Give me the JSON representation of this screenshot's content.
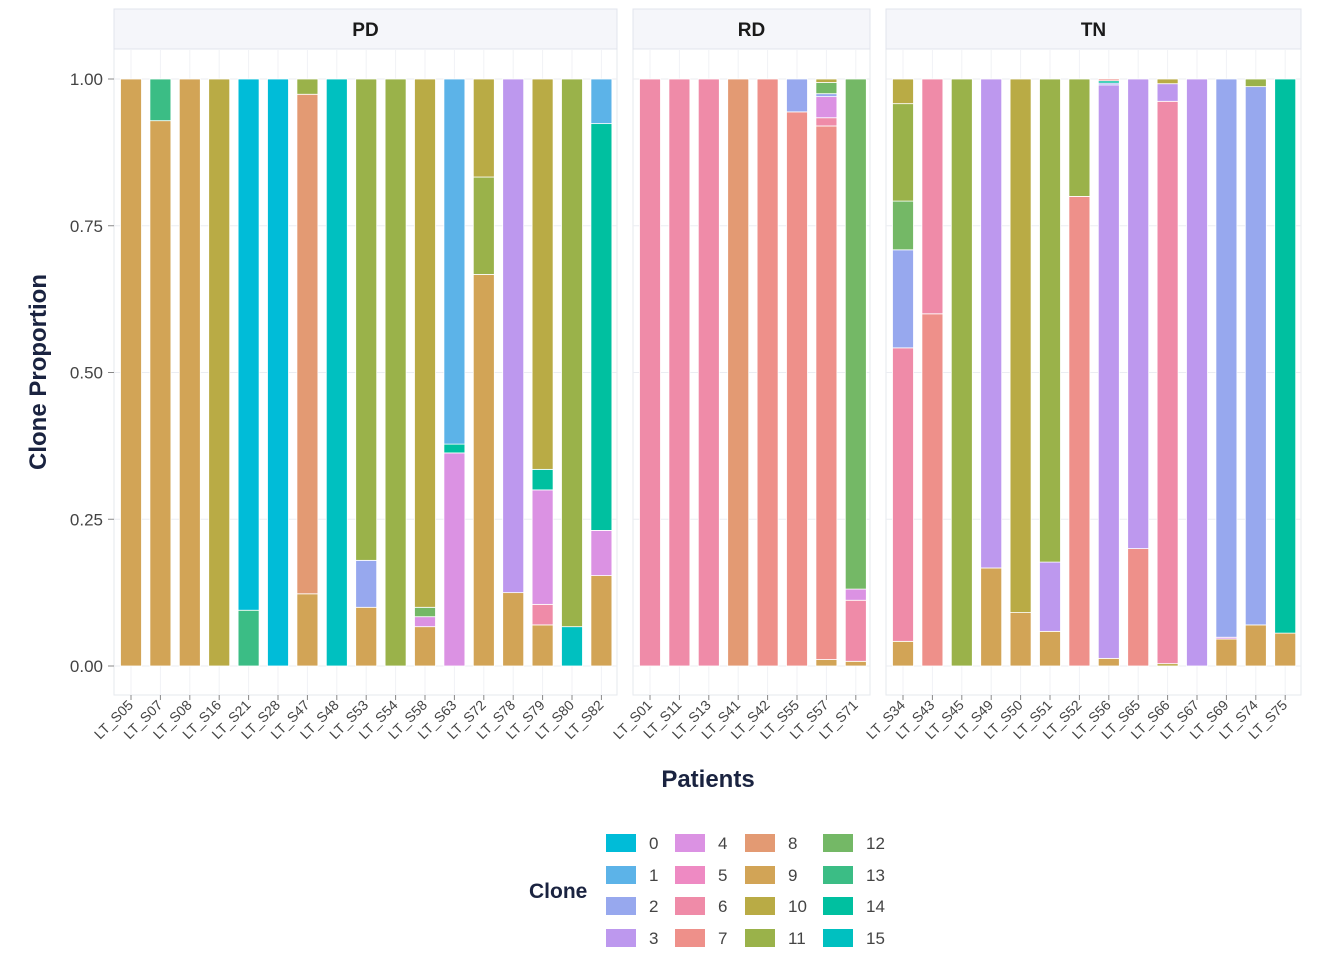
{
  "chart_data": {
    "type": "bar",
    "stacked": true,
    "xlabel": "Patients",
    "ylabel": "Clone Proportion",
    "ylim": [
      0,
      1
    ],
    "yticks": [
      "0.00",
      "0.25",
      "0.50",
      "0.75",
      "1.00"
    ],
    "legend": {
      "title": "Clone",
      "position": "bottom",
      "entries": [
        "0",
        "1",
        "2",
        "3",
        "4",
        "5",
        "6",
        "7",
        "8",
        "9",
        "10",
        "11",
        "12",
        "13",
        "14",
        "15"
      ]
    },
    "colors": {
      "0": "#00BCD8",
      "1": "#5CB3E8",
      "2": "#97A8EE",
      "3": "#BD98EE",
      "4": "#DB92E3",
      "5": "#EE8AC3",
      "6": "#EF8BA8",
      "7": "#EE908A",
      "8": "#E39A73",
      "9": "#D2A456",
      "10": "#B9AB45",
      "11": "#9AB24A",
      "12": "#74B866",
      "13": "#3BBD85",
      "14": "#00C0A0",
      "15": "#00C0C0"
    },
    "panels": [
      {
        "label": "PD",
        "patients": [
          {
            "name": "LT_S05",
            "segments": [
              [
                "9",
                1.0
              ]
            ]
          },
          {
            "name": "LT_S07",
            "segments": [
              [
                "9",
                0.929
              ],
              [
                "13",
                0.071
              ]
            ]
          },
          {
            "name": "LT_S08",
            "segments": [
              [
                "9",
                1.0
              ]
            ]
          },
          {
            "name": "LT_S16",
            "segments": [
              [
                "10",
                1.0
              ]
            ]
          },
          {
            "name": "LT_S21",
            "segments": [
              [
                "13",
                0.095
              ],
              [
                "0",
                0.905
              ]
            ]
          },
          {
            "name": "LT_S28",
            "segments": [
              [
                "0",
                1.0
              ]
            ]
          },
          {
            "name": "LT_S47",
            "segments": [
              [
                "9",
                0.123
              ],
              [
                "8",
                0.851
              ],
              [
                "11",
                0.026
              ]
            ]
          },
          {
            "name": "LT_S48",
            "segments": [
              [
                "15",
                1.0
              ]
            ]
          },
          {
            "name": "LT_S53",
            "segments": [
              [
                "9",
                0.1
              ],
              [
                "2",
                0.08
              ],
              [
                "11",
                0.82
              ]
            ]
          },
          {
            "name": "LT_S54",
            "segments": [
              [
                "11",
                1.0
              ]
            ]
          },
          {
            "name": "LT_S58",
            "segments": [
              [
                "9",
                0.067
              ],
              [
                "4",
                0.017
              ],
              [
                "12",
                0.016
              ],
              [
                "10",
                0.9
              ]
            ]
          },
          {
            "name": "LT_S63",
            "segments": [
              [
                "4",
                0.363
              ],
              [
                "14",
                0.015
              ],
              [
                "1",
                0.622
              ]
            ]
          },
          {
            "name": "LT_S72",
            "segments": [
              [
                "9",
                0.667
              ],
              [
                "11",
                0.166
              ],
              [
                "10",
                0.167
              ]
            ]
          },
          {
            "name": "LT_S78",
            "segments": [
              [
                "9",
                0.125
              ],
              [
                "3",
                0.875
              ]
            ]
          },
          {
            "name": "LT_S79",
            "segments": [
              [
                "9",
                0.07
              ],
              [
                "6",
                0.035
              ],
              [
                "4",
                0.195
              ],
              [
                "14",
                0.035
              ],
              [
                "10",
                0.665
              ]
            ]
          },
          {
            "name": "LT_S80",
            "segments": [
              [
                "15",
                0.067
              ],
              [
                "11",
                0.933
              ]
            ]
          },
          {
            "name": "LT_S82",
            "segments": [
              [
                "9",
                0.154
              ],
              [
                "4",
                0.077
              ],
              [
                "14",
                0.693
              ],
              [
                "1",
                0.076
              ]
            ]
          }
        ]
      },
      {
        "label": "RD",
        "patients": [
          {
            "name": "LT_S01",
            "segments": [
              [
                "6",
                1.0
              ]
            ]
          },
          {
            "name": "LT_S11",
            "segments": [
              [
                "6",
                1.0
              ]
            ]
          },
          {
            "name": "LT_S13",
            "segments": [
              [
                "6",
                1.0
              ]
            ]
          },
          {
            "name": "LT_S41",
            "segments": [
              [
                "8",
                1.0
              ]
            ]
          },
          {
            "name": "LT_S42",
            "segments": [
              [
                "7",
                1.0
              ]
            ]
          },
          {
            "name": "LT_S55",
            "segments": [
              [
                "7",
                0.944
              ],
              [
                "2",
                0.056
              ]
            ]
          },
          {
            "name": "LT_S57",
            "segments": [
              [
                "9",
                0.011
              ],
              [
                "7",
                0.909
              ],
              [
                "6",
                0.014
              ],
              [
                "4",
                0.036
              ],
              [
                "2",
                0.005
              ],
              [
                "12",
                0.019
              ],
              [
                "10",
                0.006
              ]
            ]
          },
          {
            "name": "LT_S71",
            "segments": [
              [
                "9",
                0.008
              ],
              [
                "6",
                0.104
              ],
              [
                "4",
                0.019
              ],
              [
                "12",
                0.869
              ]
            ]
          }
        ]
      },
      {
        "label": "TN",
        "patients": [
          {
            "name": "LT_S34",
            "segments": [
              [
                "9",
                0.042
              ],
              [
                "6",
                0.5
              ],
              [
                "2",
                0.167
              ],
              [
                "12",
                0.083
              ],
              [
                "11",
                0.166
              ],
              [
                "10",
                0.042
              ]
            ]
          },
          {
            "name": "LT_S43",
            "segments": [
              [
                "7",
                0.6
              ],
              [
                "6",
                0.4
              ]
            ]
          },
          {
            "name": "LT_S45",
            "segments": [
              [
                "11",
                1.0
              ]
            ]
          },
          {
            "name": "LT_S49",
            "segments": [
              [
                "9",
                0.167
              ],
              [
                "3",
                0.833
              ]
            ]
          },
          {
            "name": "LT_S50",
            "segments": [
              [
                "9",
                0.091
              ],
              [
                "10",
                0.909
              ]
            ]
          },
          {
            "name": "LT_S51",
            "segments": [
              [
                "9",
                0.059
              ],
              [
                "3",
                0.118
              ],
              [
                "11",
                0.823
              ]
            ]
          },
          {
            "name": "LT_S52",
            "segments": [
              [
                "7",
                0.8
              ],
              [
                "11",
                0.2
              ]
            ]
          },
          {
            "name": "LT_S56",
            "segments": [
              [
                "9",
                0.013
              ],
              [
                "3",
                0.977
              ],
              [
                "2",
                0.003
              ],
              [
                "14",
                0.004
              ],
              [
                "7",
                0.003
              ]
            ]
          },
          {
            "name": "LT_S65",
            "segments": [
              [
                "7",
                0.2
              ],
              [
                "3",
                0.8
              ]
            ]
          },
          {
            "name": "LT_S66",
            "segments": [
              [
                "10",
                0.004
              ],
              [
                "6",
                0.958
              ],
              [
                "3",
                0.03
              ],
              [
                "10",
                0.008
              ]
            ]
          },
          {
            "name": "LT_S67",
            "segments": [
              [
                "3",
                1.0
              ]
            ]
          },
          {
            "name": "LT_S69",
            "segments": [
              [
                "9",
                0.046
              ],
              [
                "4",
                0.003
              ],
              [
                "2",
                0.951
              ]
            ]
          },
          {
            "name": "LT_S74",
            "segments": [
              [
                "9",
                0.07
              ],
              [
                "2",
                0.917
              ],
              [
                "11",
                0.013
              ]
            ]
          },
          {
            "name": "LT_S75",
            "segments": [
              [
                "9",
                0.056
              ],
              [
                "14",
                0.944
              ]
            ]
          }
        ]
      }
    ]
  }
}
